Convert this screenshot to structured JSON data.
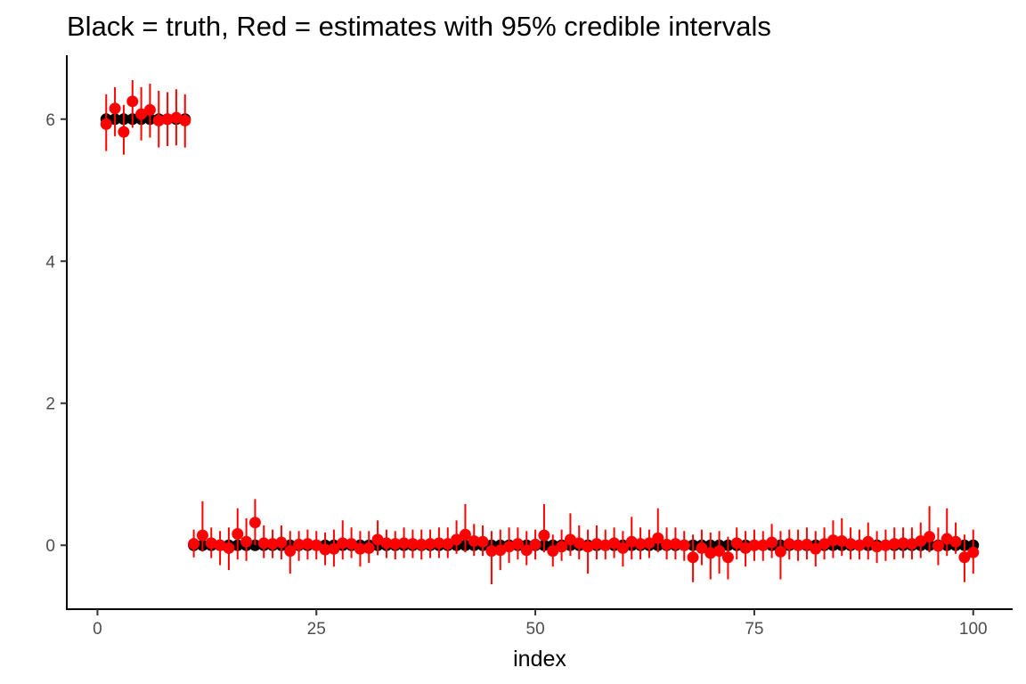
{
  "chart_data": {
    "type": "scatter",
    "title": "Black = truth, Red = estimates with 95% credible intervals",
    "xlabel": "index",
    "ylabel": "",
    "xlim": [
      -3.5,
      104.5
    ],
    "ylim": [
      -0.9,
      6.9
    ],
    "x_ticks": [
      0,
      25,
      50,
      75,
      100
    ],
    "y_ticks": [
      0,
      2,
      4,
      6
    ],
    "grid": false,
    "colors": {
      "truth": "#000000",
      "estimate": "#ff0000"
    },
    "x": [
      1,
      2,
      3,
      4,
      5,
      6,
      7,
      8,
      9,
      10,
      11,
      12,
      13,
      14,
      15,
      16,
      17,
      18,
      19,
      20,
      21,
      22,
      23,
      24,
      25,
      26,
      27,
      28,
      29,
      30,
      31,
      32,
      33,
      34,
      35,
      36,
      37,
      38,
      39,
      40,
      41,
      42,
      43,
      44,
      45,
      46,
      47,
      48,
      49,
      50,
      51,
      52,
      53,
      54,
      55,
      56,
      57,
      58,
      59,
      60,
      61,
      62,
      63,
      64,
      65,
      66,
      67,
      68,
      69,
      70,
      71,
      72,
      73,
      74,
      75,
      76,
      77,
      78,
      79,
      80,
      81,
      82,
      83,
      84,
      85,
      86,
      87,
      88,
      89,
      90,
      91,
      92,
      93,
      94,
      95,
      96,
      97,
      98,
      99,
      100
    ],
    "truth": [
      6,
      6,
      6,
      6,
      6,
      6,
      6,
      6,
      6,
      6,
      0,
      0,
      0,
      0,
      0,
      0,
      0,
      0,
      0,
      0,
      0,
      0,
      0,
      0,
      0,
      0,
      0,
      0,
      0,
      0,
      0,
      0,
      0,
      0,
      0,
      0,
      0,
      0,
      0,
      0,
      0,
      0,
      0,
      0,
      0,
      0,
      0,
      0,
      0,
      0,
      0,
      0,
      0,
      0,
      0,
      0,
      0,
      0,
      0,
      0,
      0,
      0,
      0,
      0,
      0,
      0,
      0,
      0,
      0,
      0,
      0,
      0,
      0,
      0,
      0,
      0,
      0,
      0,
      0,
      0,
      0,
      0,
      0,
      0,
      0,
      0,
      0,
      0,
      0,
      0,
      0,
      0,
      0,
      0,
      0,
      0,
      0,
      0,
      0,
      0
    ],
    "estimate": [
      5.93,
      6.15,
      5.82,
      6.25,
      6.07,
      6.13,
      5.98,
      6.0,
      6.02,
      5.98,
      0.02,
      0.14,
      0.03,
      0.0,
      -0.04,
      0.16,
      0.05,
      0.32,
      0.03,
      0.02,
      0.04,
      -0.08,
      0.01,
      0.02,
      0.0,
      -0.06,
      -0.05,
      0.03,
      0.02,
      -0.05,
      -0.04,
      0.08,
      0.03,
      0.02,
      0.03,
      0.02,
      0.01,
      0.02,
      0.03,
      0.02,
      0.08,
      0.15,
      0.06,
      0.05,
      -0.08,
      -0.07,
      -0.02,
      0.02,
      -0.07,
      0.01,
      0.14,
      -0.08,
      -0.02,
      0.08,
      0.03,
      -0.02,
      0.02,
      0.0,
      0.03,
      -0.04,
      0.05,
      0.02,
      0.03,
      0.1,
      0.01,
      0.02,
      0.0,
      -0.17,
      -0.04,
      -0.11,
      -0.08,
      -0.17,
      0.03,
      -0.04,
      0.0,
      0.0,
      0.04,
      -0.09,
      0.02,
      0.0,
      0.01,
      -0.05,
      0.02,
      0.07,
      0.06,
      0.02,
      0.0,
      0.05,
      -0.02,
      0.0,
      0.02,
      0.03,
      0.02,
      0.06,
      0.12,
      -0.01,
      0.09,
      0.05,
      -0.17,
      -0.1
    ],
    "lower": [
      5.55,
      5.76,
      5.5,
      5.88,
      5.7,
      5.74,
      5.6,
      5.62,
      5.63,
      5.6,
      -0.17,
      -0.09,
      -0.18,
      -0.28,
      -0.35,
      -0.2,
      -0.22,
      0.0,
      -0.18,
      -0.18,
      -0.2,
      -0.4,
      -0.22,
      -0.2,
      -0.2,
      -0.28,
      -0.3,
      -0.2,
      -0.18,
      -0.3,
      -0.25,
      -0.14,
      -0.18,
      -0.2,
      -0.18,
      -0.18,
      -0.2,
      -0.18,
      -0.18,
      -0.18,
      -0.12,
      -0.1,
      -0.15,
      -0.15,
      -0.55,
      -0.35,
      -0.25,
      -0.2,
      -0.28,
      -0.2,
      -0.1,
      -0.3,
      -0.22,
      -0.15,
      -0.2,
      -0.4,
      -0.2,
      -0.2,
      -0.18,
      -0.3,
      -0.2,
      -0.2,
      -0.18,
      -0.1,
      -0.2,
      -0.2,
      -0.22,
      -0.52,
      -0.28,
      -0.48,
      -0.4,
      -0.48,
      -0.2,
      -0.3,
      -0.22,
      -0.22,
      -0.18,
      -0.48,
      -0.2,
      -0.22,
      -0.2,
      -0.3,
      -0.2,
      -0.18,
      -0.15,
      -0.2,
      -0.2,
      -0.2,
      -0.25,
      -0.22,
      -0.2,
      -0.18,
      -0.2,
      -0.18,
      -0.1,
      -0.28,
      -0.15,
      -0.12,
      -0.52,
      -0.4
    ],
    "upper": [
      6.35,
      6.45,
      6.2,
      6.55,
      6.45,
      6.5,
      6.4,
      6.38,
      6.42,
      6.35,
      0.22,
      0.62,
      0.25,
      0.2,
      0.25,
      0.52,
      0.38,
      0.65,
      0.28,
      0.22,
      0.28,
      0.2,
      0.2,
      0.22,
      0.2,
      0.18,
      0.22,
      0.35,
      0.25,
      0.2,
      0.2,
      0.35,
      0.22,
      0.2,
      0.25,
      0.22,
      0.22,
      0.22,
      0.25,
      0.25,
      0.35,
      0.58,
      0.3,
      0.28,
      0.2,
      0.22,
      0.25,
      0.25,
      0.2,
      0.22,
      0.58,
      0.15,
      0.22,
      0.45,
      0.28,
      0.22,
      0.28,
      0.22,
      0.25,
      0.2,
      0.4,
      0.25,
      0.22,
      0.52,
      0.25,
      0.25,
      0.2,
      0.15,
      0.22,
      0.18,
      0.2,
      0.12,
      0.25,
      0.2,
      0.22,
      0.2,
      0.3,
      0.2,
      0.22,
      0.22,
      0.25,
      0.2,
      0.25,
      0.35,
      0.38,
      0.25,
      0.22,
      0.32,
      0.2,
      0.22,
      0.25,
      0.25,
      0.25,
      0.32,
      0.55,
      0.25,
      0.52,
      0.32,
      0.15,
      0.22
    ]
  }
}
